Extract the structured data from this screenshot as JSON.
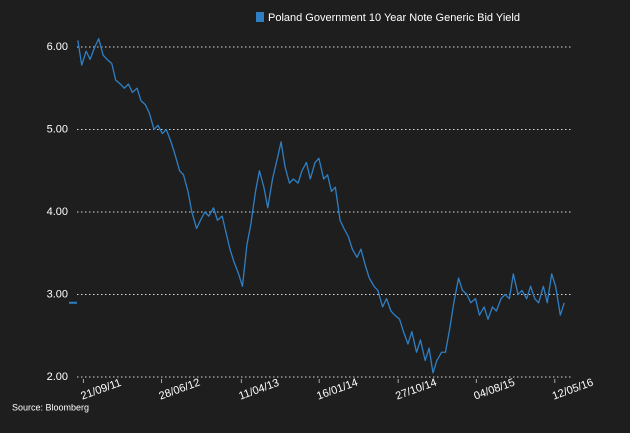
{
  "chart_data": {
    "type": "line",
    "source": "Source: Bloomberg",
    "x": [
      "2011-09-01",
      "2011-09-15",
      "2011-10-01",
      "2011-10-15",
      "2011-11-01",
      "2011-11-15",
      "2011-12-01",
      "2011-12-15",
      "2012-01-01",
      "2012-01-15",
      "2012-02-01",
      "2012-02-15",
      "2012-03-01",
      "2012-03-15",
      "2012-04-01",
      "2012-04-15",
      "2012-05-01",
      "2012-05-15",
      "2012-06-01",
      "2012-06-15",
      "2012-07-01",
      "2012-07-15",
      "2012-08-01",
      "2012-08-15",
      "2012-09-01",
      "2012-09-15",
      "2012-10-01",
      "2012-10-15",
      "2012-11-01",
      "2012-11-15",
      "2012-12-01",
      "2012-12-15",
      "2013-01-01",
      "2013-01-15",
      "2013-02-01",
      "2013-02-15",
      "2013-03-01",
      "2013-03-15",
      "2013-04-01",
      "2013-04-15",
      "2013-05-01",
      "2013-05-15",
      "2013-06-01",
      "2013-06-15",
      "2013-07-01",
      "2013-07-15",
      "2013-08-01",
      "2013-08-15",
      "2013-09-01",
      "2013-09-15",
      "2013-10-01",
      "2013-10-15",
      "2013-11-01",
      "2013-11-15",
      "2013-12-01",
      "2013-12-15",
      "2014-01-01",
      "2014-01-15",
      "2014-02-01",
      "2014-02-15",
      "2014-03-01",
      "2014-03-15",
      "2014-04-01",
      "2014-04-15",
      "2014-05-01",
      "2014-05-15",
      "2014-06-01",
      "2014-06-15",
      "2014-07-01",
      "2014-07-15",
      "2014-08-01",
      "2014-08-15",
      "2014-09-01",
      "2014-09-15",
      "2014-10-01",
      "2014-10-15",
      "2014-11-01",
      "2014-11-15",
      "2014-12-01",
      "2014-12-15",
      "2015-01-01",
      "2015-01-15",
      "2015-02-01",
      "2015-02-15",
      "2015-03-01",
      "2015-03-15",
      "2015-04-01",
      "2015-04-15",
      "2015-05-01",
      "2015-05-15",
      "2015-06-01",
      "2015-06-15",
      "2015-07-01",
      "2015-07-15",
      "2015-08-01",
      "2015-08-15",
      "2015-09-01",
      "2015-09-15",
      "2015-10-01",
      "2015-10-15",
      "2015-11-01",
      "2015-11-15",
      "2015-12-01",
      "2015-12-15",
      "2016-01-01",
      "2016-01-15",
      "2016-02-01",
      "2016-02-15",
      "2016-03-01",
      "2016-03-15",
      "2016-04-01",
      "2016-04-15",
      "2016-05-01",
      "2016-05-15",
      "2016-06-01",
      "2016-06-15"
    ],
    "series": [
      {
        "name": "Poland Government 10 Year Note Generic Bid Yield",
        "color": "#2f7fc4",
        "values": [
          6.08,
          5.78,
          5.95,
          5.85,
          6.0,
          6.1,
          5.9,
          5.85,
          5.8,
          5.6,
          5.55,
          5.5,
          5.55,
          5.45,
          5.5,
          5.35,
          5.3,
          5.2,
          5.0,
          5.05,
          4.95,
          5.0,
          4.85,
          4.7,
          4.5,
          4.45,
          4.25,
          4.0,
          3.8,
          3.9,
          4.0,
          3.95,
          4.05,
          3.9,
          3.95,
          3.75,
          3.55,
          3.4,
          3.25,
          3.1,
          3.6,
          3.85,
          4.25,
          4.5,
          4.3,
          4.05,
          4.4,
          4.6,
          4.85,
          4.55,
          4.35,
          4.4,
          4.35,
          4.5,
          4.6,
          4.4,
          4.6,
          4.65,
          4.4,
          4.45,
          4.25,
          4.3,
          3.9,
          3.8,
          3.7,
          3.55,
          3.45,
          3.55,
          3.35,
          3.2,
          3.1,
          3.05,
          2.85,
          2.95,
          2.8,
          2.75,
          2.7,
          2.55,
          2.4,
          2.55,
          2.3,
          2.45,
          2.2,
          2.35,
          2.05,
          2.2,
          2.3,
          2.3,
          2.6,
          2.9,
          3.2,
          3.05,
          3.0,
          2.9,
          2.95,
          2.75,
          2.85,
          2.7,
          2.85,
          2.8,
          2.95,
          3.0,
          2.95,
          3.25,
          3.0,
          3.05,
          2.95,
          3.1,
          2.95,
          2.9,
          3.1,
          2.9,
          3.25,
          3.1,
          2.75,
          2.9
        ]
      }
    ],
    "xlim": [
      "2011-08-29",
      "2016-06-25"
    ],
    "xticks": [
      {
        "value": "2011-09-21",
        "label": "21/09/11"
      },
      {
        "value": "2012-06-28",
        "label": "28/06/12"
      },
      {
        "value": "2013-04-11",
        "label": "11/04/13"
      },
      {
        "value": "2014-01-16",
        "label": "16/01/14"
      },
      {
        "value": "2014-10-27",
        "label": "27/10/14"
      },
      {
        "value": "2015-08-04",
        "label": "04/08/15"
      },
      {
        "value": "2016-05-12",
        "label": "12/05/16"
      }
    ],
    "ylim": [
      1.97,
      6.15
    ],
    "yticks": [
      {
        "value": 2,
        "label": "2.00"
      },
      {
        "value": 3,
        "label": "3.00"
      },
      {
        "value": 4,
        "label": "4.00"
      },
      {
        "value": 5,
        "label": "5.00"
      },
      {
        "value": 6,
        "label": "6.00"
      }
    ],
    "grid": true
  }
}
